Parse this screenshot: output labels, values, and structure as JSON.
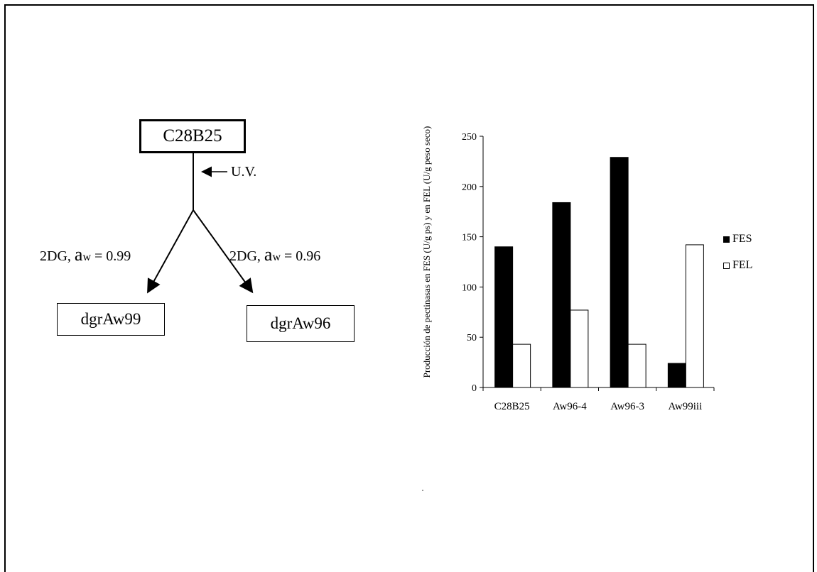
{
  "diagram": {
    "root": "C28B25",
    "uv_label": "U.V.",
    "left_condition": {
      "prefix": "2DG, ",
      "aw": "a",
      "aw_sub": "w",
      "value": " = 0.99"
    },
    "right_condition": {
      "prefix": "2DG, ",
      "aw": "a",
      "aw_sub": "w",
      "value": " = 0.96"
    },
    "left_child": "dgrAw99",
    "right_child": "dgrAw96"
  },
  "chart_data": {
    "type": "bar",
    "ylabel": "Producción de pectinasas en FES (U/g ps) y en FEL (U/g peso seco)",
    "xlabel": "",
    "ylim": [
      0,
      250
    ],
    "yticks": [
      0,
      50,
      100,
      150,
      200,
      250
    ],
    "categories": [
      "C28B25",
      "Aw96-4",
      "Aw96-3",
      "Aw99iii"
    ],
    "series": [
      {
        "name": "FES",
        "color": "#000000",
        "values": [
          140,
          184,
          229,
          24
        ]
      },
      {
        "name": "FEL",
        "color": "#ffffff",
        "values": [
          43,
          77,
          43,
          142
        ]
      }
    ],
    "legend_position": "right"
  }
}
